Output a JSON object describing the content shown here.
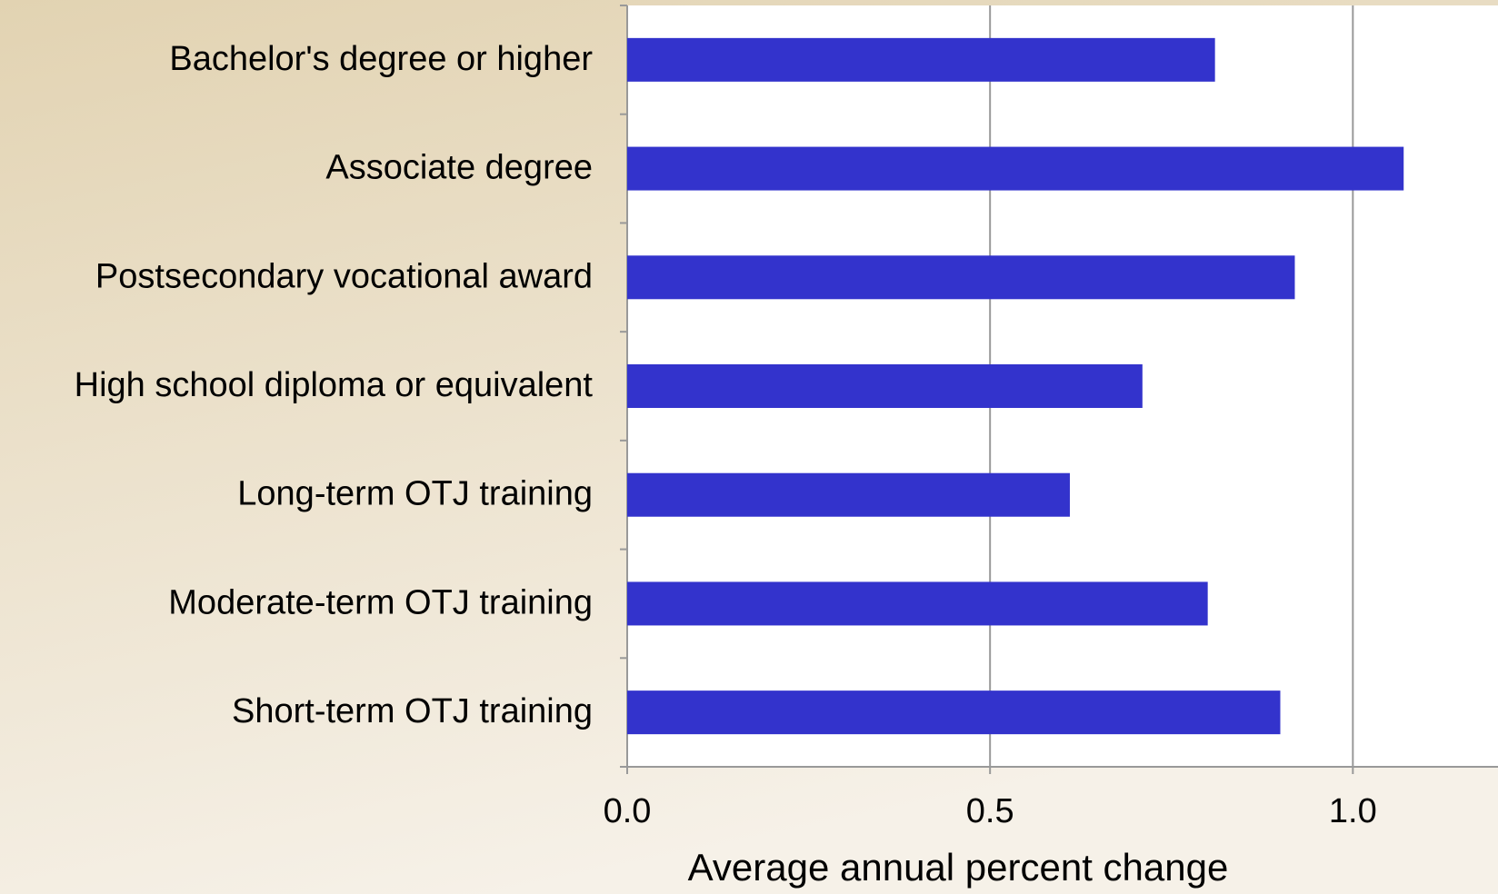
{
  "chart_data": {
    "type": "barh",
    "categories": [
      "Bachelor's degree or higher",
      "Associate degree",
      "Postsecondary vocational award",
      "High school diploma or equivalent",
      "Long-term OTJ training",
      "Moderate-term OTJ training",
      "Short-term OTJ training"
    ],
    "values": [
      0.81,
      1.07,
      0.92,
      0.71,
      0.61,
      0.8,
      0.9
    ],
    "color": "#3333cc",
    "xlabel": "Average annual percent change",
    "xlim": [
      0,
      1.2
    ],
    "xticks": [
      {
        "value": 0,
        "label": "0.0"
      },
      {
        "value": 0.5,
        "label": "0.5"
      },
      {
        "value": 1.0,
        "label": "1.0"
      }
    ],
    "grid": true
  }
}
